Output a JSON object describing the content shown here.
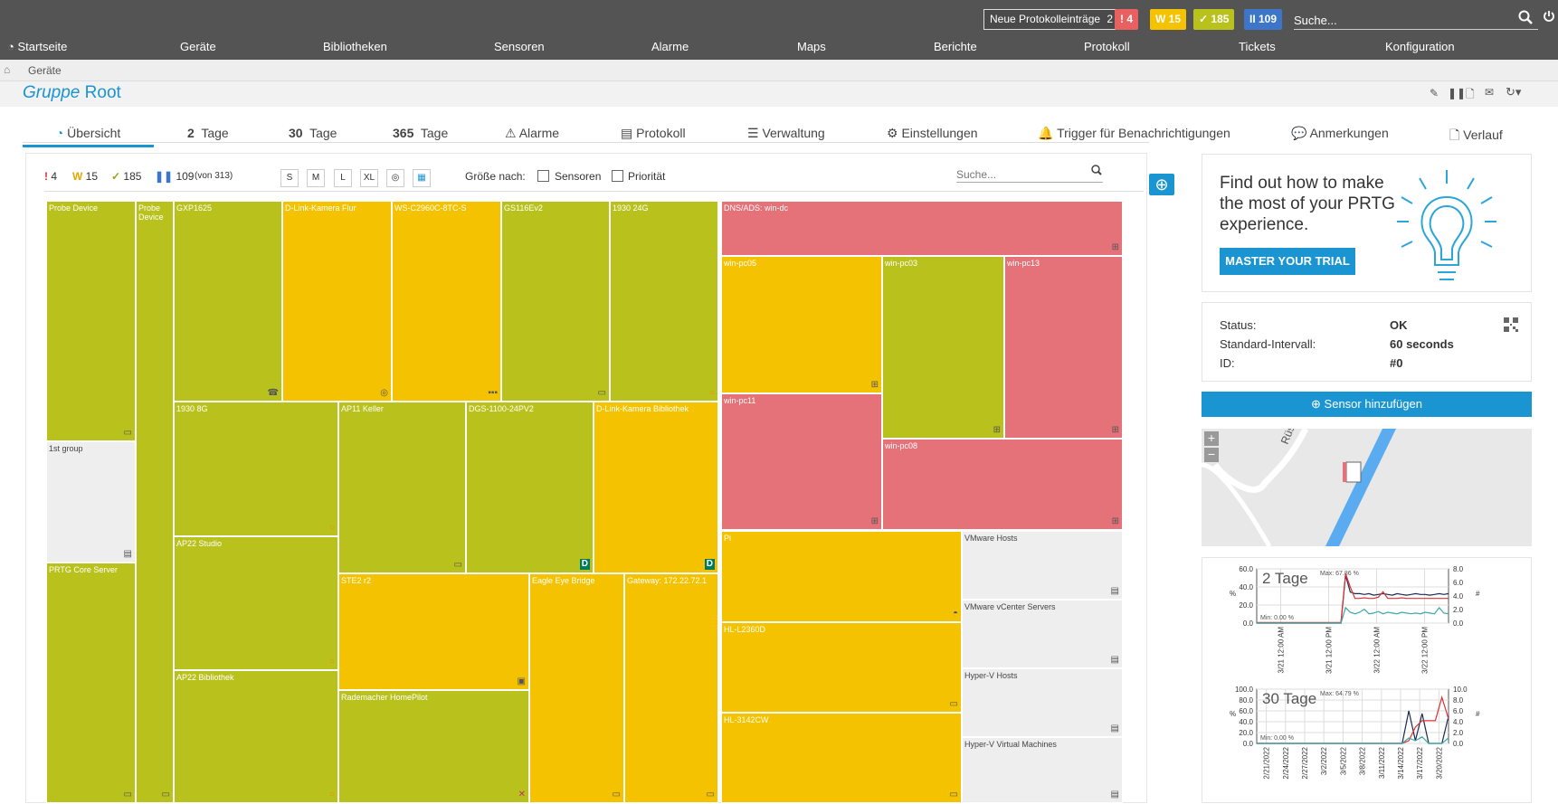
{
  "topbar": {
    "new_log_label": "Neue Protokolleinträge",
    "new_log_count": "2",
    "badges": [
      {
        "name": "alarm-badge",
        "text": "! 4",
        "color": "#e8605f"
      },
      {
        "name": "warning-badge",
        "text": "W 15",
        "color": "#f5c200"
      },
      {
        "name": "ok-badge",
        "text": "✓ 185",
        "color": "#b9c11c"
      },
      {
        "name": "paused-badge",
        "text": "II 109",
        "color": "#3d76c9"
      }
    ],
    "search_placeholder": "Suche..."
  },
  "nav": {
    "home": "Startseite",
    "items": [
      "Geräte",
      "Bibliotheken",
      "Sensoren",
      "Alarme",
      "Maps",
      "Berichte",
      "Protokoll",
      "Tickets",
      "Konfiguration"
    ]
  },
  "breadcrumb": {
    "item": "Geräte"
  },
  "page": {
    "title_prefix": "Gruppe",
    "title_name": "Root"
  },
  "tabs": [
    {
      "label": "Übersicht",
      "num": ""
    },
    {
      "label": "Tage",
      "num": "2"
    },
    {
      "label": "Tage",
      "num": "30"
    },
    {
      "label": "Tage",
      "num": "365"
    },
    {
      "label": "Alarme",
      "num": ""
    },
    {
      "label": "Protokoll",
      "num": ""
    },
    {
      "label": "Verwaltung",
      "num": ""
    },
    {
      "label": "Einstellungen",
      "num": ""
    },
    {
      "label": "Trigger für Benachrichtigungen",
      "num": ""
    },
    {
      "label": "Anmerkungen",
      "num": ""
    },
    {
      "label": "Verlauf",
      "num": ""
    }
  ],
  "subbar": {
    "counts": {
      "alarm": "4",
      "warning": "15",
      "ok": "185",
      "paused": "109",
      "total": "(von 313)"
    },
    "sizes": [
      "S",
      "M",
      "L",
      "XL"
    ],
    "size_by_label": "Größe nach:",
    "cb_sensors": "Sensoren",
    "cb_priority": "Priorität",
    "search_placeholder": "Suche..."
  },
  "tiles": [
    {
      "label": "Probe Device",
      "status": "green",
      "icon": "▭"
    },
    {
      "label": "Probe Device",
      "status": "green",
      "icon": "▭"
    },
    {
      "label": "1st group",
      "status": "grey",
      "icon": "▤"
    },
    {
      "label": "PRTG Core Server",
      "status": "green",
      "icon": "▭"
    },
    {
      "label": "GXP1625",
      "status": "green",
      "icon": "☎"
    },
    {
      "label": "D-Link-Kamera Flur",
      "status": "yellow",
      "icon": "◎"
    },
    {
      "label": "WS-C2960C-8TC-S",
      "status": "yellow",
      "icon": "▪▪▪"
    },
    {
      "label": "GS116Ev2",
      "status": "green",
      "icon": "▭"
    },
    {
      "label": "1930 24G",
      "status": "green",
      "icon": "○"
    },
    {
      "label": "1930 8G",
      "status": "green",
      "icon": "○"
    },
    {
      "label": "AP11 Keller",
      "status": "green",
      "icon": "▭"
    },
    {
      "label": "DGS-1100-24PV2",
      "status": "green",
      "icon": "D"
    },
    {
      "label": "D-Link-Kamera Bibliothek",
      "status": "yellow",
      "icon": "D"
    },
    {
      "label": "AP22 Studio",
      "status": "green",
      "icon": "○"
    },
    {
      "label": "AP22 Bibliothek",
      "status": "green",
      "icon": "○"
    },
    {
      "label": "STE2 r2",
      "status": "yellow",
      "icon": "▣"
    },
    {
      "label": "Rademacher HomePilot",
      "status": "green",
      "icon": "✕"
    },
    {
      "label": "Eagle Eye Bridge",
      "status": "yellow",
      "icon": "▭"
    },
    {
      "label": "Gateway: 172.22.72.1",
      "status": "yellow",
      "icon": "▭"
    },
    {
      "label": "DNS/ADS: win-dc",
      "status": "red",
      "icon": "⊞"
    },
    {
      "label": "win-pc05",
      "status": "yellow",
      "icon": "⊞"
    },
    {
      "label": "win-pc03",
      "status": "green",
      "icon": "⊞"
    },
    {
      "label": "win-pc13",
      "status": "red",
      "icon": "⊞"
    },
    {
      "label": "win-pc11",
      "status": "red",
      "icon": "⊞"
    },
    {
      "label": "win-pc08",
      "status": "red",
      "icon": "⊞"
    },
    {
      "label": "Pi",
      "status": "yellow",
      "icon": "◓"
    },
    {
      "label": "VMware Hosts",
      "status": "grey",
      "icon": "▤"
    },
    {
      "label": "VMware vCenter Servers",
      "status": "grey",
      "icon": "▤"
    },
    {
      "label": "HL-L2360D",
      "status": "yellow",
      "icon": "▭"
    },
    {
      "label": "Hyper-V Hosts",
      "status": "grey",
      "icon": "▤"
    },
    {
      "label": "HL-3142CW",
      "status": "yellow",
      "icon": "▭"
    },
    {
      "label": "Hyper-V Virtual Machines",
      "status": "grey",
      "icon": "▤"
    }
  ],
  "promo": {
    "text": "Find out how to make the most of your PRTG experience.",
    "button": "MASTER YOUR TRIAL"
  },
  "status": {
    "rows": [
      {
        "label": "Status:",
        "value": "OK"
      },
      {
        "label": "Standard-Intervall:",
        "value": "60 seconds"
      },
      {
        "label": "ID:",
        "value": "#0"
      }
    ]
  },
  "add_sensor": "Sensor hinzufügen",
  "map": {
    "street": "Rüs"
  },
  "chart_data": [
    {
      "type": "line",
      "title": "2 Tage",
      "ylabel": "%",
      "y2label": "#",
      "yticks": [
        "60.0",
        "40.0",
        "20.0",
        "0.0"
      ],
      "y2ticks": [
        "8.0",
        "6.0",
        "4.0",
        "2.0",
        "0.0"
      ],
      "ylim": [
        0,
        70
      ],
      "y2lim": [
        0,
        9
      ],
      "xticks": [
        "3/21 12:00 AM",
        "3/21 12:00 PM",
        "3/22 12:00 AM",
        "3/22 12:00 PM"
      ],
      "annotations": [
        "Max: 67.86 %",
        "Min: 0.00 %"
      ],
      "series": [
        {
          "color": "#1b2a52",
          "values": [
            0,
            0,
            0,
            0,
            0,
            0,
            0,
            0,
            0,
            0,
            0,
            0,
            0,
            0,
            0,
            0,
            0,
            0,
            0,
            62,
            40,
            38,
            38,
            37,
            38,
            36,
            37,
            38,
            37,
            36,
            38,
            37,
            36,
            37,
            38,
            37,
            37,
            36,
            37,
            38,
            37,
            38
          ]
        },
        {
          "color": "#e03030",
          "values": [
            0.1,
            0.1,
            0.1,
            0.1,
            0.1,
            0.1,
            0.1,
            0.1,
            0.1,
            0.1,
            0.1,
            0.1,
            0.1,
            0.1,
            0.1,
            0.1,
            0.1,
            0.1,
            0.1,
            8.2,
            6,
            4.1,
            4.1,
            4.2,
            4.1,
            4.1,
            4.3,
            5.2,
            4.1,
            4.1,
            4.1,
            4.2,
            4.1,
            4.1,
            4.1,
            4.1,
            4.1,
            4.1,
            4.1,
            4.1,
            4.1,
            4.1
          ]
        },
        {
          "color": "#3aa9a6",
          "values": [
            0,
            0,
            0,
            0,
            0,
            0,
            0,
            0,
            0,
            0,
            0,
            0,
            0,
            0,
            0,
            0,
            0,
            0,
            0,
            20,
            14,
            12,
            14,
            18,
            12,
            13,
            15,
            12,
            14,
            13,
            12,
            14,
            13,
            12,
            13,
            12,
            14,
            13,
            12,
            20,
            13,
            12
          ]
        }
      ]
    },
    {
      "type": "line",
      "title": "30 Tage",
      "ylabel": "%",
      "y2label": "#",
      "yticks": [
        "100.0",
        "80.0",
        "60.0",
        "40.0",
        "20.0",
        "0.0"
      ],
      "y2ticks": [
        "10.0",
        "8.0",
        "6.0",
        "4.0",
        "2.0",
        "0.0"
      ],
      "ylim": [
        0,
        100
      ],
      "y2lim": [
        0,
        10
      ],
      "xticks": [
        "2/21/2022",
        "2/24/2022",
        "2/27/2022",
        "3/2/2022",
        "3/5/2022",
        "3/8/2022",
        "3/11/2022",
        "3/14/2022",
        "3/17/2022",
        "3/20/2022"
      ],
      "annotations": [
        "Max: 64.79 %",
        "Min: 0.00 %"
      ],
      "series": [
        {
          "color": "#1b2a52",
          "values": [
            0,
            0,
            0,
            0,
            0,
            0,
            0,
            0,
            0,
            0,
            0,
            0,
            0,
            0,
            0,
            0,
            0,
            0,
            0,
            0,
            0,
            0,
            0,
            60,
            5,
            55,
            0,
            0,
            0,
            50
          ]
        },
        {
          "color": "#e03030",
          "values": [
            0,
            0,
            0,
            0,
            0,
            0,
            0,
            0,
            0,
            0,
            0,
            0,
            0,
            0,
            0,
            0,
            0,
            0,
            0,
            0,
            0,
            0,
            0,
            0.5,
            3,
            4.2,
            4.2,
            4.2,
            8.5,
            4.5
          ]
        },
        {
          "color": "#3aa9a6",
          "values": [
            0,
            0,
            0,
            0,
            0,
            0,
            0,
            0,
            0,
            0,
            0,
            0,
            0,
            0,
            0,
            0,
            0,
            0,
            0,
            0,
            0,
            0,
            0,
            10,
            5,
            12,
            0,
            0,
            0,
            10
          ]
        }
      ]
    }
  ]
}
